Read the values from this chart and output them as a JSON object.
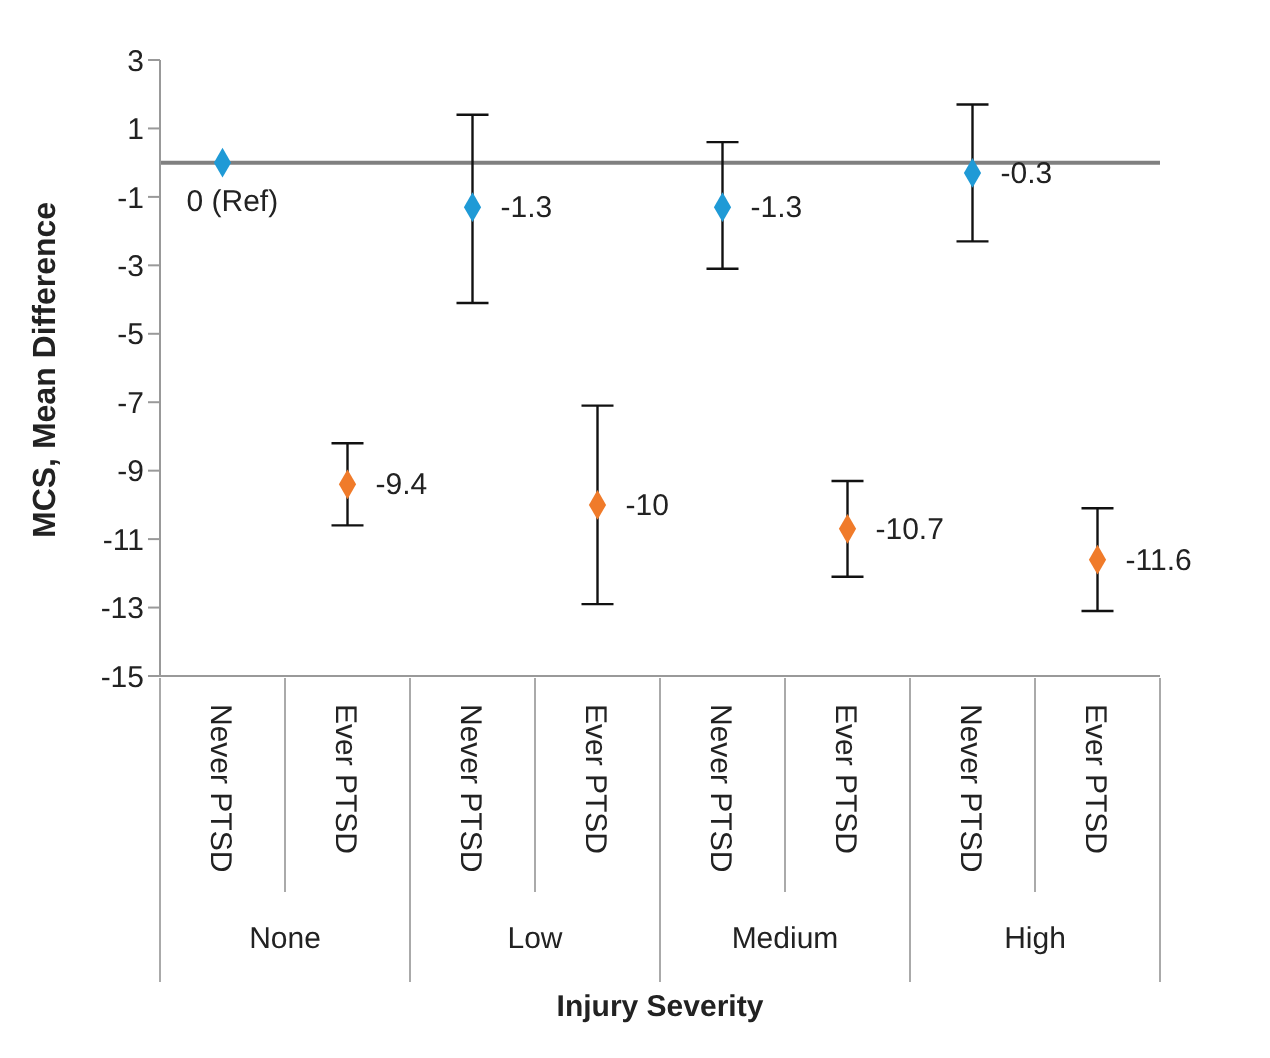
{
  "chart_data": {
    "type": "scatter",
    "xlabel": "Injury Severity",
    "ylabel": "MCS, Mean Difference",
    "categories": [
      "Never PTSD",
      "Ever PTSD",
      "Never PTSD",
      "Ever PTSD",
      "Never PTSD",
      "Ever PTSD",
      "Never PTSD",
      "Ever PTSD"
    ],
    "annotations": [
      "None",
      "Low",
      "Medium",
      "High"
    ],
    "series": [
      {
        "color": "#1f9ad6",
        "values": [
          0,
          null,
          -1.3,
          null,
          -1.3,
          null,
          -0.3,
          null
        ],
        "errors": [
          null,
          null,
          [
            -4.1,
            1.4
          ],
          null,
          [
            -3.1,
            0.6
          ],
          null,
          [
            -2.3,
            1.7
          ],
          null
        ],
        "value_labels": [
          "0 (Ref)",
          null,
          "-1.3",
          null,
          "-1.3",
          null,
          "-0.3",
          null
        ]
      },
      {
        "color": "#f07b2a",
        "values": [
          null,
          -9.4,
          null,
          -10,
          null,
          -10.7,
          null,
          -11.6
        ],
        "errors": [
          null,
          [
            -10.6,
            -8.2
          ],
          null,
          [
            -12.9,
            -7.1
          ],
          null,
          [
            -12.1,
            -9.3
          ],
          null,
          [
            -13.1,
            -10.1
          ]
        ],
        "value_labels": [
          null,
          "-9.4",
          null,
          "-10",
          null,
          "-10.7",
          null,
          "-11.6"
        ]
      }
    ],
    "ylim": [
      -15,
      3
    ],
    "yticks": [
      -15,
      -13,
      -11,
      -9,
      -7,
      -5,
      -3,
      -1,
      1,
      3
    ],
    "ref_lines": [
      {
        "axis": "y",
        "value": 0,
        "color": "#808080"
      }
    ],
    "grid": false,
    "legend": false,
    "marker": "diamond"
  }
}
